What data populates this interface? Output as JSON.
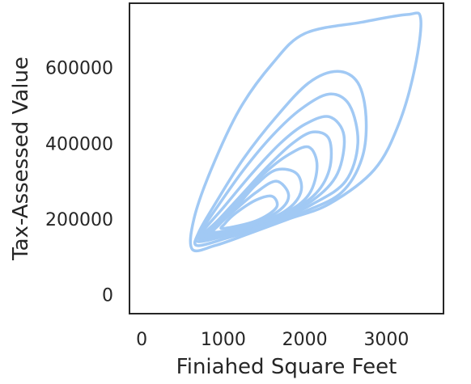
{
  "chart_data": {
    "type": "kde_contour",
    "title": "",
    "xlabel": "Finiahed Square Feet",
    "ylabel": "Tax-Assessed Value",
    "xlim": [
      -150,
      3700
    ],
    "ylim": [
      -50000,
      770000
    ],
    "x_ticks": [
      0,
      1000,
      2000,
      3000
    ],
    "y_ticks": [
      0,
      200000,
      400000,
      600000
    ],
    "x_tick_labels": [
      "0",
      "1000",
      "2000",
      "3000"
    ],
    "y_tick_labels": [
      "0",
      "200000",
      "400000",
      "600000"
    ],
    "grid": false,
    "contour_color": "#a1c9f4",
    "contours": [
      {
        "level": 1,
        "points": [
          [
            620,
            120000
          ],
          [
            900,
            130000
          ],
          [
            1300,
            160000
          ],
          [
            1800,
            200000
          ],
          [
            2300,
            240000
          ],
          [
            2850,
            330000
          ],
          [
            3150,
            450000
          ],
          [
            3350,
            600000
          ],
          [
            3420,
            730000
          ],
          [
            3250,
            740000
          ],
          [
            2700,
            720000
          ],
          [
            2000,
            690000
          ],
          [
            1600,
            610000
          ],
          [
            1200,
            490000
          ],
          [
            850,
            330000
          ],
          [
            640,
            200000
          ]
        ]
      },
      {
        "level": 2,
        "points": [
          [
            680,
            130000
          ],
          [
            1050,
            150000
          ],
          [
            1500,
            180000
          ],
          [
            2000,
            220000
          ],
          [
            2450,
            270000
          ],
          [
            2700,
            360000
          ],
          [
            2750,
            470000
          ],
          [
            2650,
            560000
          ],
          [
            2400,
            590000
          ],
          [
            2050,
            560000
          ],
          [
            1650,
            470000
          ],
          [
            1250,
            360000
          ],
          [
            900,
            240000
          ],
          [
            700,
            165000
          ]
        ]
      },
      {
        "level": 3,
        "points": [
          [
            700,
            140000
          ],
          [
            1100,
            160000
          ],
          [
            1600,
            190000
          ],
          [
            2100,
            240000
          ],
          [
            2500,
            300000
          ],
          [
            2650,
            400000
          ],
          [
            2550,
            500000
          ],
          [
            2300,
            530000
          ],
          [
            1950,
            490000
          ],
          [
            1600,
            420000
          ],
          [
            1250,
            330000
          ],
          [
            920,
            230000
          ],
          [
            720,
            165000
          ]
        ]
      },
      {
        "level": 4,
        "points": [
          [
            730,
            145000
          ],
          [
            1150,
            165000
          ],
          [
            1650,
            200000
          ],
          [
            2100,
            250000
          ],
          [
            2400,
            320000
          ],
          [
            2480,
            420000
          ],
          [
            2300,
            470000
          ],
          [
            2000,
            450000
          ],
          [
            1700,
            400000
          ],
          [
            1350,
            320000
          ],
          [
            1000,
            230000
          ],
          [
            760,
            170000
          ]
        ]
      },
      {
        "level": 5,
        "points": [
          [
            760,
            150000
          ],
          [
            1200,
            170000
          ],
          [
            1700,
            210000
          ],
          [
            2100,
            260000
          ],
          [
            2300,
            330000
          ],
          [
            2300,
            410000
          ],
          [
            2100,
            430000
          ],
          [
            1850,
            400000
          ],
          [
            1550,
            340000
          ],
          [
            1250,
            270000
          ],
          [
            950,
            200000
          ],
          [
            780,
            165000
          ]
        ]
      },
      {
        "level": 6,
        "points": [
          [
            800,
            155000
          ],
          [
            1250,
            175000
          ],
          [
            1750,
            215000
          ],
          [
            2050,
            265000
          ],
          [
            2150,
            340000
          ],
          [
            2050,
            390000
          ],
          [
            1800,
            370000
          ],
          [
            1500,
            320000
          ],
          [
            1200,
            250000
          ],
          [
            950,
            195000
          ],
          [
            810,
            165000
          ]
        ]
      },
      {
        "level": 7,
        "points": [
          [
            850,
            160000
          ],
          [
            1300,
            180000
          ],
          [
            1750,
            220000
          ],
          [
            1950,
            270000
          ],
          [
            1900,
            320000
          ],
          [
            1650,
            330000
          ],
          [
            1400,
            290000
          ],
          [
            1150,
            230000
          ],
          [
            930,
            185000
          ],
          [
            860,
            168000
          ]
        ]
      },
      {
        "level": 8,
        "points": [
          [
            900,
            165000
          ],
          [
            1350,
            185000
          ],
          [
            1700,
            225000
          ],
          [
            1800,
            265000
          ],
          [
            1650,
            300000
          ],
          [
            1400,
            270000
          ],
          [
            1150,
            225000
          ],
          [
            950,
            185000
          ]
        ]
      },
      {
        "level": 9,
        "points": [
          [
            1000,
            175000
          ],
          [
            1400,
            195000
          ],
          [
            1650,
            230000
          ],
          [
            1600,
            260000
          ],
          [
            1400,
            250000
          ],
          [
            1150,
            215000
          ],
          [
            1020,
            188000
          ]
        ]
      }
    ]
  }
}
